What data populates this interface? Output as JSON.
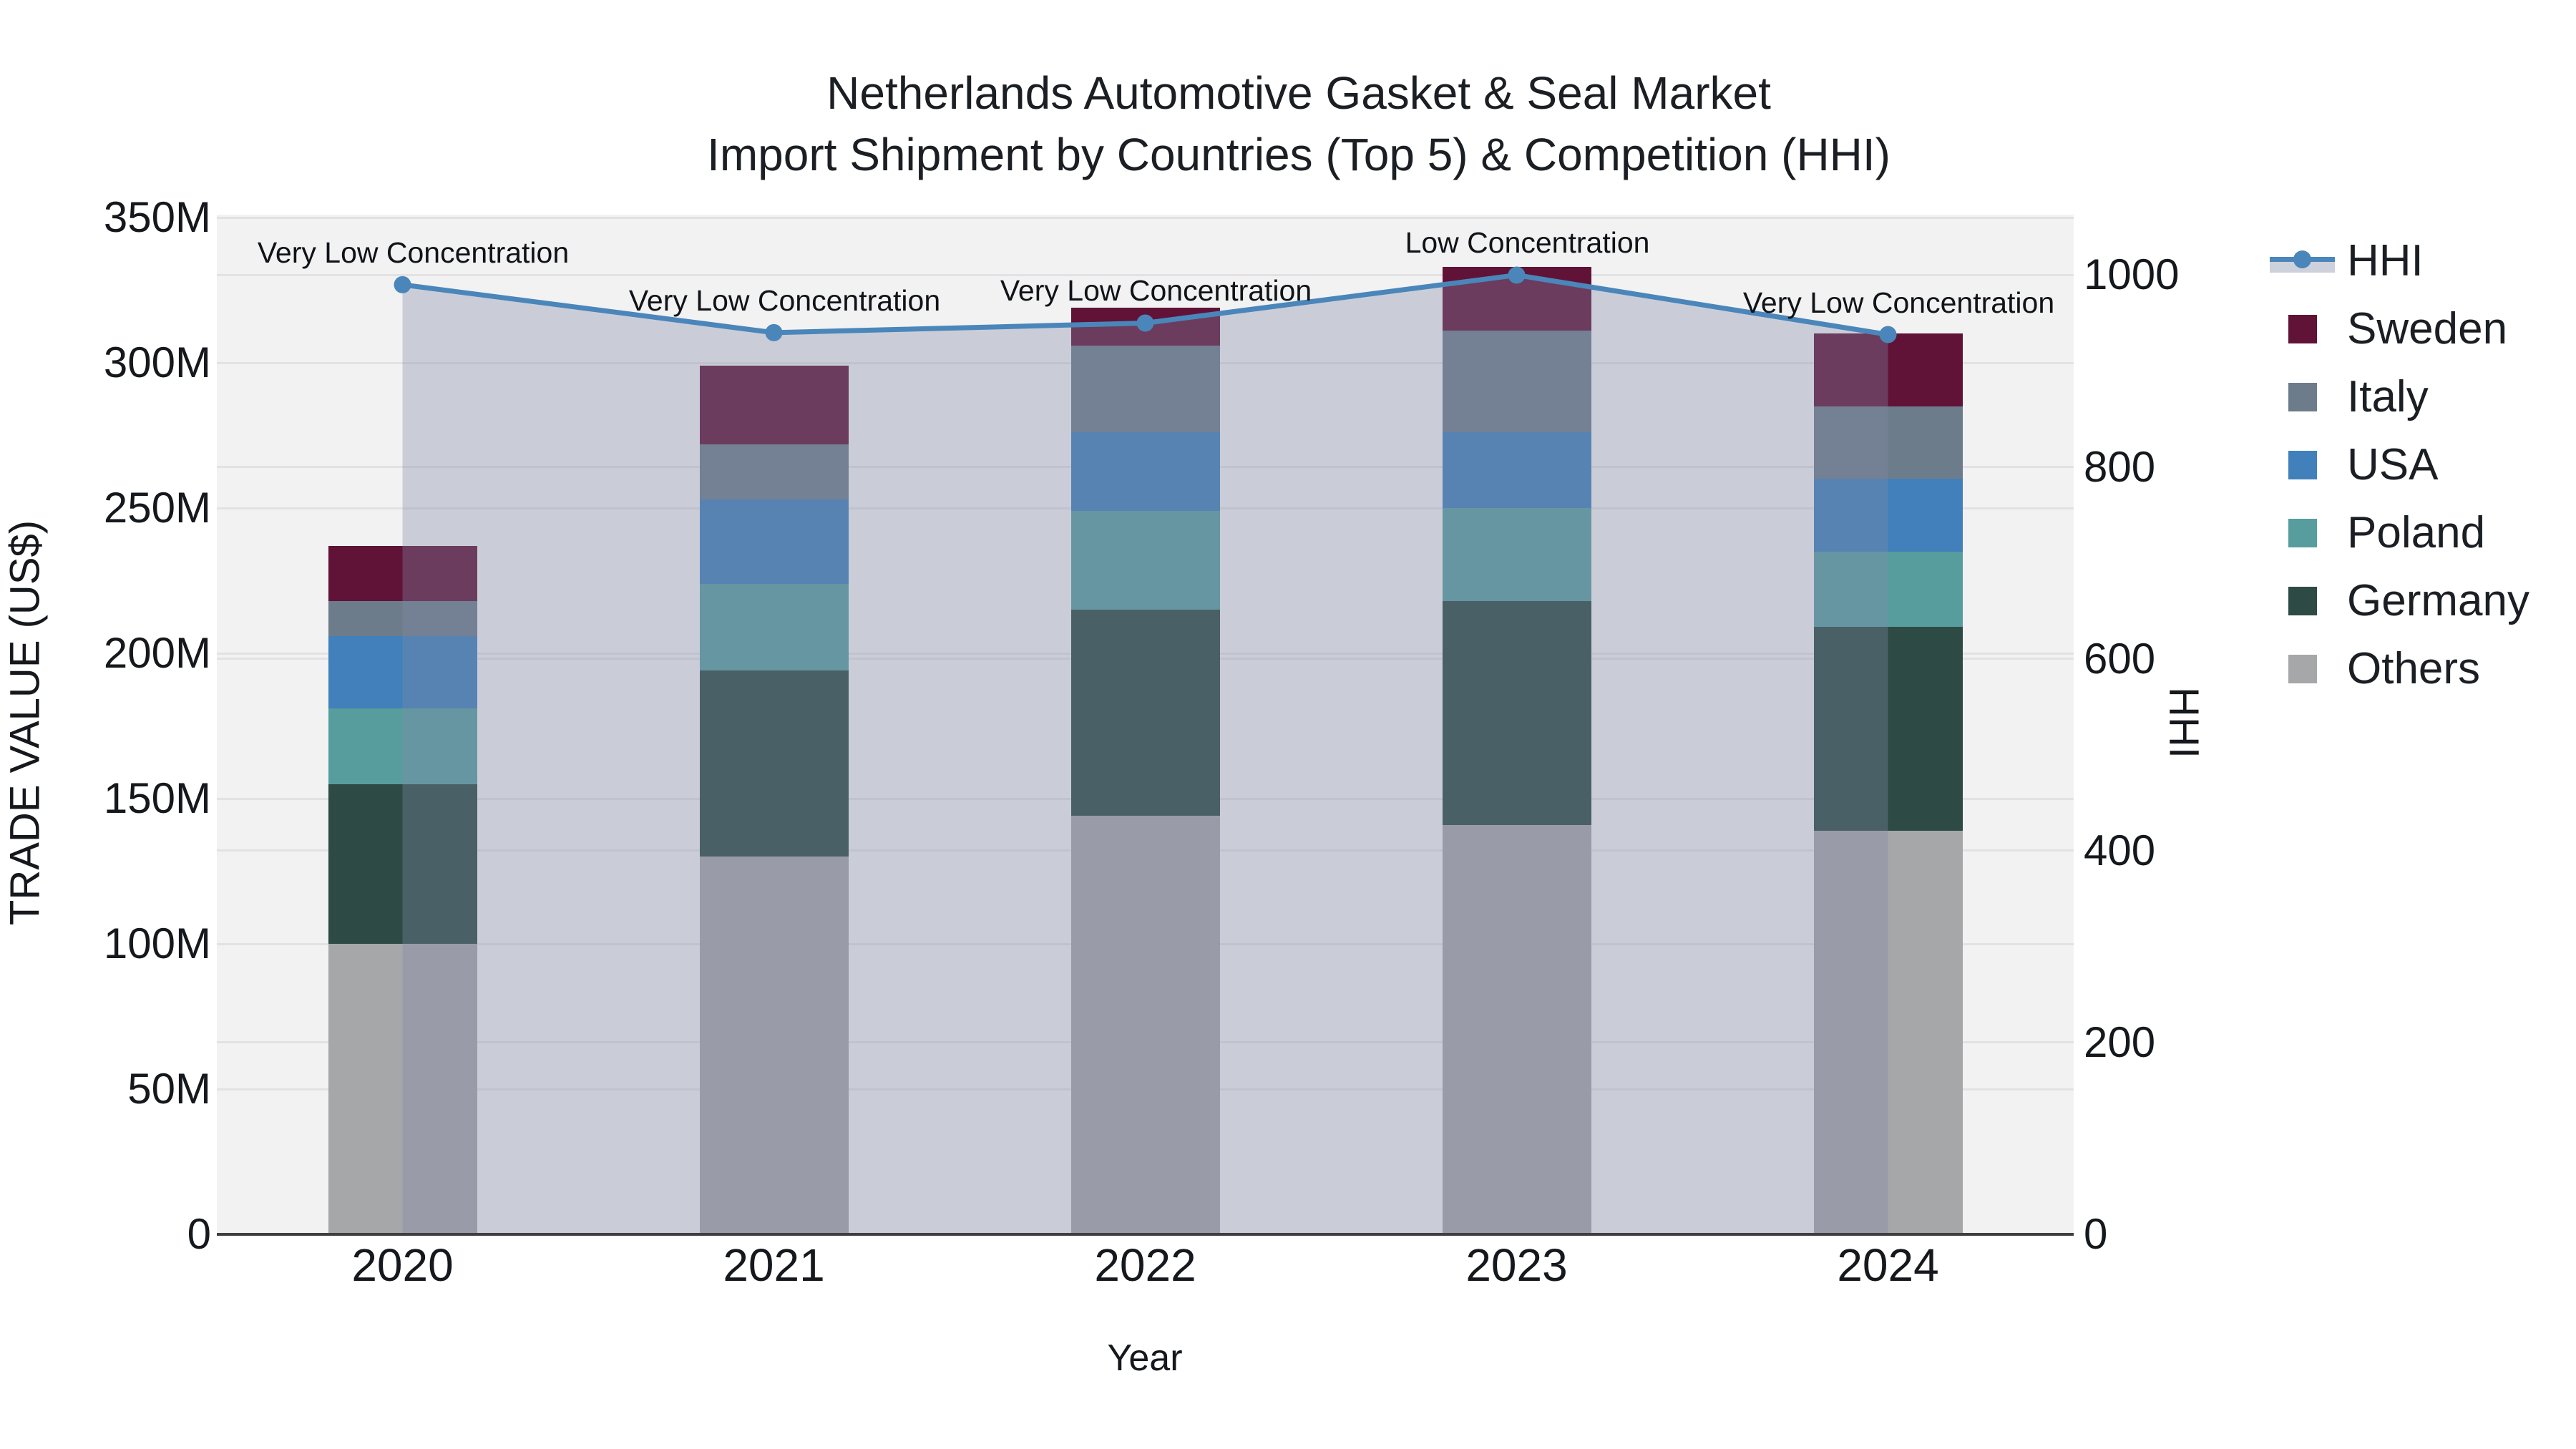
{
  "title": {
    "line1": "Netherlands Automotive Gasket & Seal Market",
    "line2": "Import Shipment by Countries (Top 5) & Competition (HHI)"
  },
  "axes": {
    "y_left": {
      "title": "TRADE VALUE (US$)",
      "tick_labels": [
        "0",
        "50M",
        "100M",
        "150M",
        "200M",
        "250M",
        "300M",
        "350M"
      ],
      "tick_values": [
        0,
        50,
        100,
        150,
        200,
        250,
        300,
        350
      ]
    },
    "y_right": {
      "title": "HHI",
      "tick_labels": [
        "0",
        "200",
        "400",
        "600",
        "800",
        "1000"
      ],
      "tick_values": [
        0,
        200,
        400,
        600,
        800,
        1000
      ]
    },
    "x": {
      "title": "Year",
      "categories": [
        "2020",
        "2021",
        "2022",
        "2023",
        "2024"
      ]
    }
  },
  "legend": [
    {
      "label": "HHI",
      "kind": "line",
      "color": "#4a86ba"
    },
    {
      "label": "Sweden",
      "kind": "swatch",
      "color": "#601336"
    },
    {
      "label": "Italy",
      "kind": "swatch",
      "color": "#6d7c8b"
    },
    {
      "label": "USA",
      "kind": "swatch",
      "color": "#4180ba"
    },
    {
      "label": "Poland",
      "kind": "swatch",
      "color": "#589d9e"
    },
    {
      "label": "Germany",
      "kind": "swatch",
      "color": "#2d4a45"
    },
    {
      "label": "Others",
      "kind": "swatch",
      "color": "#a6a7a9"
    }
  ],
  "chart_data": {
    "type": "bar+line dual-axis (stacked bars left axis, HHI area line right axis)",
    "categories": [
      "2020",
      "2021",
      "2022",
      "2023",
      "2024"
    ],
    "bar_value_unit": "Million US$",
    "series": [
      {
        "name": "Others",
        "color": "#a6a7a9",
        "values": [
          100,
          130,
          144,
          141,
          139
        ]
      },
      {
        "name": "Germany",
        "color": "#2d4a45",
        "values": [
          55,
          64,
          71,
          77,
          70
        ]
      },
      {
        "name": "Poland",
        "color": "#589d9e",
        "values": [
          26,
          30,
          34,
          32,
          26
        ]
      },
      {
        "name": "USA",
        "color": "#4180ba",
        "values": [
          25,
          29,
          27,
          26,
          25
        ]
      },
      {
        "name": "Italy",
        "color": "#6d7c8b",
        "values": [
          12,
          19,
          30,
          35,
          25
        ]
      },
      {
        "name": "Sweden",
        "color": "#601336",
        "values": [
          19,
          27,
          13,
          22,
          25
        ]
      }
    ],
    "stack_totals": [
      237,
      299,
      319,
      333,
      310
    ],
    "hhi": {
      "name": "HHI",
      "values": [
        990,
        940,
        950,
        1000,
        938
      ],
      "line_color": "#4a86ba",
      "fill_color": "rgba(128,138,165,0.35)"
    },
    "annotations": [
      {
        "x": "2020",
        "text": "Very Low Concentration"
      },
      {
        "x": "2021",
        "text": "Very Low Concentration"
      },
      {
        "x": "2022",
        "text": "Very Low Concentration"
      },
      {
        "x": "2023",
        "text": "Low Concentration"
      },
      {
        "x": "2024",
        "text": "Very Low Concentration"
      }
    ],
    "xlabel": "Year",
    "ylabel_left": "TRADE VALUE (US$)",
    "ylabel_right": "HHI",
    "ylim_left": [
      0,
      351
    ],
    "ylim_right": [
      0,
      1063
    ],
    "grid": true,
    "legend_position": "right"
  },
  "colors": {
    "plot_bg": "#f2f2f3",
    "grid": "#e2e2e4",
    "zeroline": "#3f3f3f",
    "text": "#15181c"
  }
}
